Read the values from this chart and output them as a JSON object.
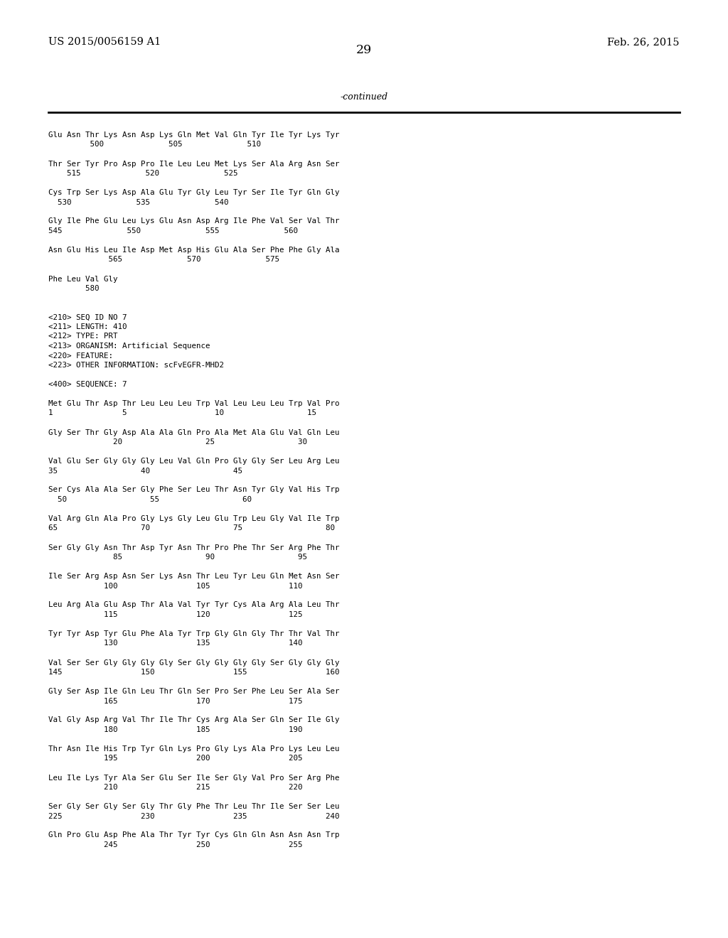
{
  "background_color": "#ffffff",
  "top_left_text": "US 2015/0056159 A1",
  "top_right_text": "Feb. 26, 2015",
  "page_number": "29",
  "continued_text": "-continued",
  "header_fontsize": 10.5,
  "body_fontsize": 8.0,
  "mono_fontsize": 7.8,
  "body_lines": [
    "Glu Asn Thr Lys Asn Asp Lys Gln Met Val Gln Tyr Ile Tyr Lys Tyr",
    "         500              505              510",
    "",
    "Thr Ser Tyr Pro Asp Pro Ile Leu Leu Met Lys Ser Ala Arg Asn Ser",
    "    515              520              525",
    "",
    "Cys Trp Ser Lys Asp Ala Glu Tyr Gly Leu Tyr Ser Ile Tyr Gln Gly",
    "  530              535              540",
    "",
    "Gly Ile Phe Glu Leu Lys Glu Asn Asp Arg Ile Phe Val Ser Val Thr",
    "545              550              555              560",
    "",
    "Asn Glu His Leu Ile Asp Met Asp His Glu Ala Ser Phe Phe Gly Ala",
    "             565              570              575",
    "",
    "Phe Leu Val Gly",
    "        580",
    "",
    "",
    "<210> SEQ ID NO 7",
    "<211> LENGTH: 410",
    "<212> TYPE: PRT",
    "<213> ORGANISM: Artificial Sequence",
    "<220> FEATURE:",
    "<223> OTHER INFORMATION: scFvEGFR-MHD2",
    "",
    "<400> SEQUENCE: 7",
    "",
    "Met Glu Thr Asp Thr Leu Leu Leu Trp Val Leu Leu Leu Trp Val Pro",
    "1               5                   10                  15",
    "",
    "Gly Ser Thr Gly Asp Ala Ala Gln Pro Ala Met Ala Glu Val Gln Leu",
    "              20                  25                  30",
    "",
    "Val Glu Ser Gly Gly Gly Leu Val Gln Pro Gly Gly Ser Leu Arg Leu",
    "35                  40                  45",
    "",
    "Ser Cys Ala Ala Ser Gly Phe Ser Leu Thr Asn Tyr Gly Val His Trp",
    "  50                  55                  60",
    "",
    "Val Arg Gln Ala Pro Gly Lys Gly Leu Glu Trp Leu Gly Val Ile Trp",
    "65                  70                  75                  80",
    "",
    "Ser Gly Gly Asn Thr Asp Tyr Asn Thr Pro Phe Thr Ser Arg Phe Thr",
    "              85                  90                  95",
    "",
    "Ile Ser Arg Asp Asn Ser Lys Asn Thr Leu Tyr Leu Gln Met Asn Ser",
    "            100                 105                 110",
    "",
    "Leu Arg Ala Glu Asp Thr Ala Val Tyr Tyr Cys Ala Arg Ala Leu Thr",
    "            115                 120                 125",
    "",
    "Tyr Tyr Asp Tyr Glu Phe Ala Tyr Trp Gly Gln Gly Thr Thr Val Thr",
    "            130                 135                 140",
    "",
    "Val Ser Ser Gly Gly Gly Gly Ser Gly Gly Gly Gly Ser Gly Gly Gly",
    "145                 150                 155                 160",
    "",
    "Gly Ser Asp Ile Gln Leu Thr Gln Ser Pro Ser Phe Leu Ser Ala Ser",
    "            165                 170                 175",
    "",
    "Val Gly Asp Arg Val Thr Ile Thr Cys Arg Ala Ser Gln Ser Ile Gly",
    "            180                 185                 190",
    "",
    "Thr Asn Ile His Trp Tyr Gln Lys Pro Gly Lys Ala Pro Lys Leu Leu",
    "            195                 200                 205",
    "",
    "Leu Ile Lys Tyr Ala Ser Glu Ser Ile Ser Gly Val Pro Ser Arg Phe",
    "            210                 215                 220",
    "",
    "Ser Gly Ser Gly Ser Gly Thr Gly Phe Thr Leu Thr Ile Ser Ser Leu",
    "225                 230                 235                 240",
    "",
    "Gln Pro Glu Asp Phe Ala Thr Tyr Tyr Cys Gln Gln Asn Asn Asn Trp",
    "            245                 250                 255"
  ]
}
